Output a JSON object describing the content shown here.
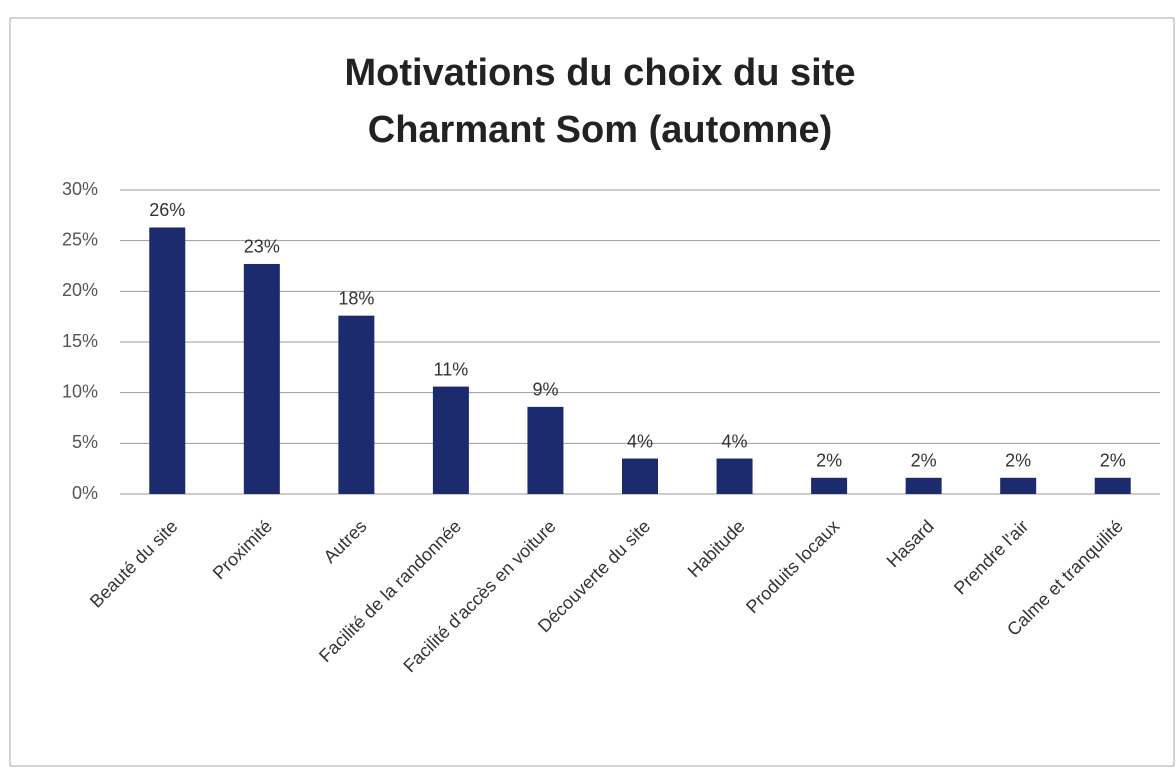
{
  "chart_data": {
    "type": "bar",
    "title": [
      "Motivations du choix du site",
      "Charmant Som (automne)"
    ],
    "categories": [
      "Beauté du site",
      "Proximité",
      "Autres",
      "Facilité de la randonnée",
      "Facilité d'accès en voiture",
      "Découverte du site",
      "Habitude",
      "Produits locaux",
      "Hasard",
      "Prendre l'air",
      "Calme et tranquilité"
    ],
    "values": [
      26.3,
      22.7,
      17.6,
      10.6,
      8.6,
      3.5,
      3.5,
      1.6,
      1.6,
      1.6,
      1.6
    ],
    "value_labels": [
      "26%",
      "23%",
      "18%",
      "11%",
      "9%",
      "4%",
      "4%",
      "2%",
      "2%",
      "2%",
      "2%"
    ],
    "color": "#1c2b6e",
    "ylim": [
      0,
      30
    ],
    "yticks": [
      {
        "value": 0,
        "label": "0%"
      },
      {
        "value": 5,
        "label": "5%"
      },
      {
        "value": 10,
        "label": "10%"
      },
      {
        "value": 15,
        "label": "15%"
      },
      {
        "value": 20,
        "label": "20%"
      },
      {
        "value": 25,
        "label": "25%"
      },
      {
        "value": 30,
        "label": "30%"
      }
    ],
    "grid": true
  }
}
